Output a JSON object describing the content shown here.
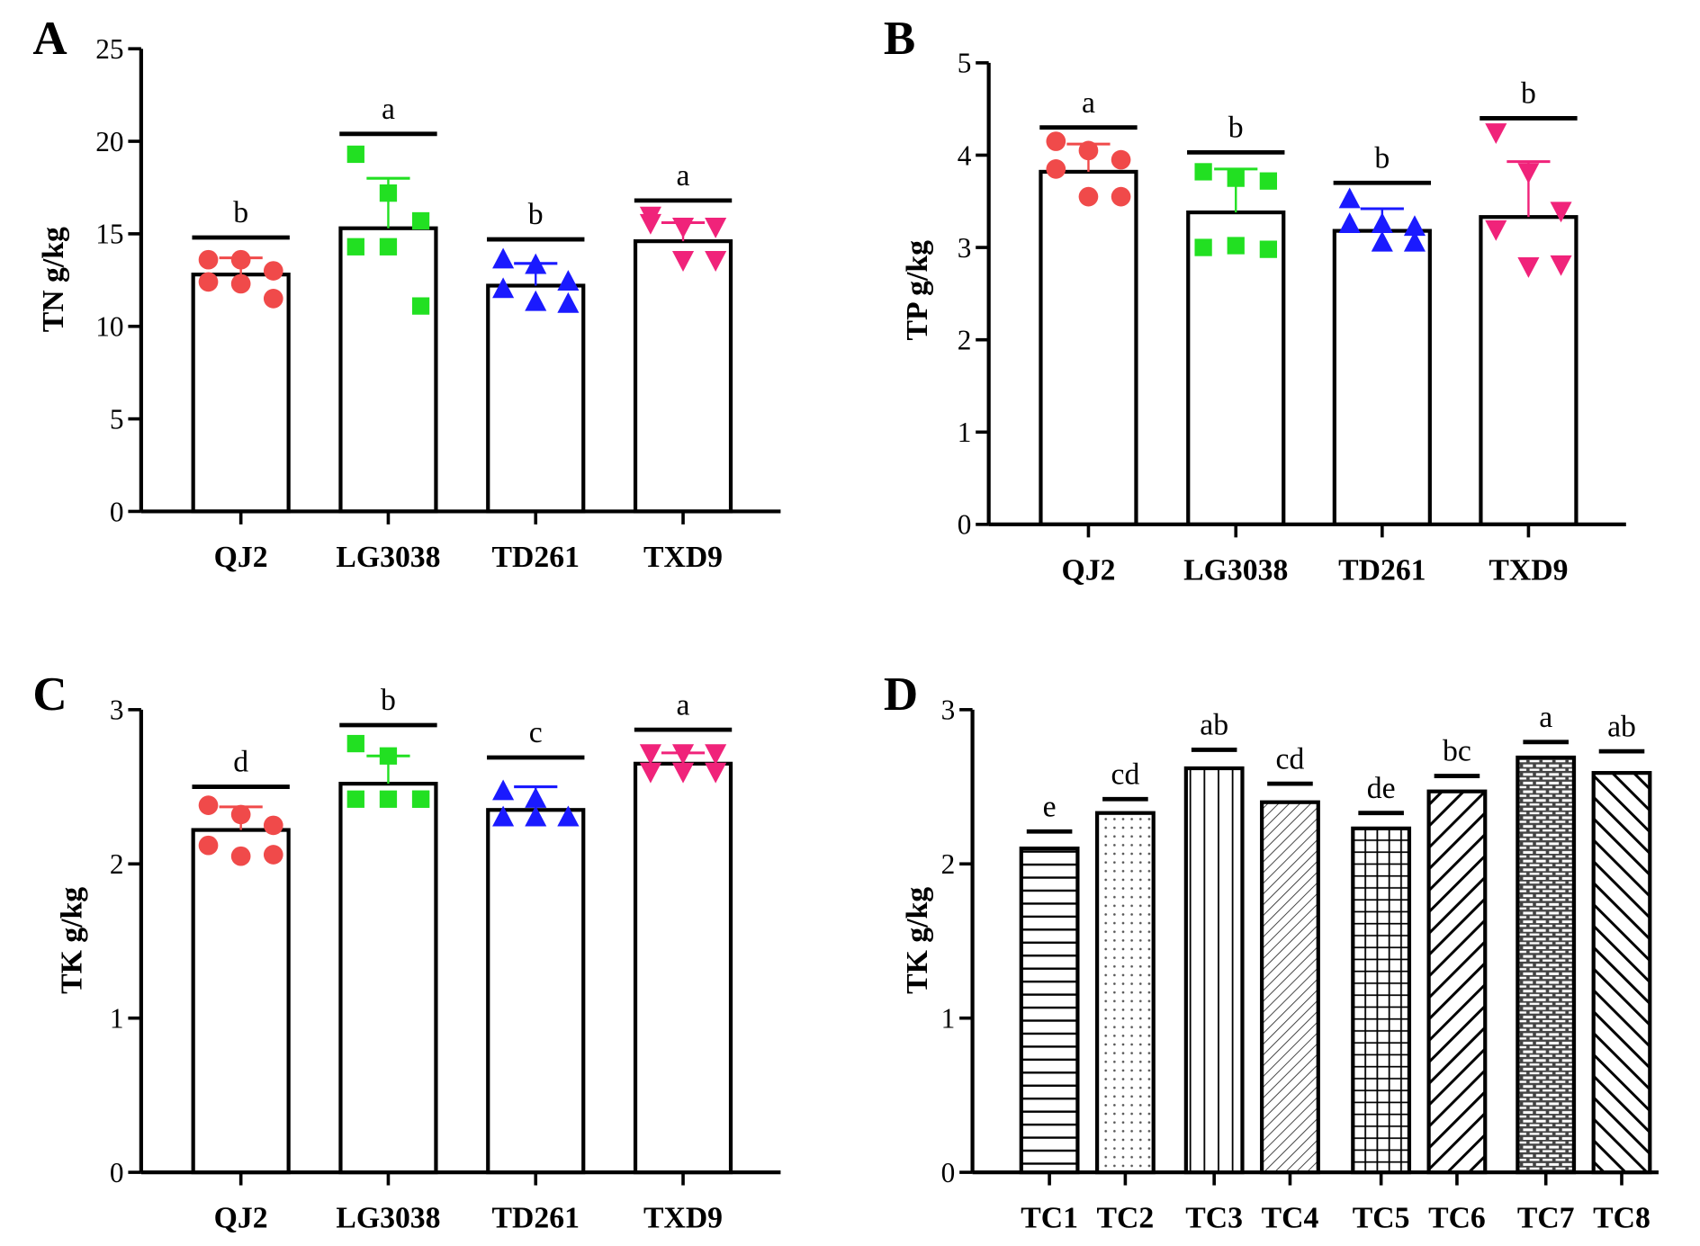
{
  "chart_data": [
    {
      "panel": "A",
      "type": "bar",
      "ylabel": "TN g/kg",
      "ylim": [
        0,
        25
      ],
      "yticks": [
        0,
        5,
        10,
        15,
        20,
        25
      ],
      "categories": [
        "QJ2",
        "LG3038",
        "TD261",
        "TXD9"
      ],
      "values": [
        12.8,
        15.3,
        12.2,
        14.6
      ],
      "sd_upper": [
        13.7,
        18.0,
        13.4,
        15.6
      ],
      "points": [
        [
          13.6,
          13.6,
          13.0,
          12.4,
          12.3,
          11.5
        ],
        [
          19.3,
          17.2,
          15.7,
          14.3,
          14.3,
          11.1
        ],
        [
          13.6,
          13.3,
          12.4,
          12.0,
          11.3,
          11.2
        ],
        [
          16.0,
          15.4,
          15.4,
          15.6,
          13.6,
          13.6
        ]
      ],
      "letters": [
        "b",
        "a",
        "b",
        "a"
      ],
      "letter_line": [
        14.8,
        20.4,
        14.7,
        16.8
      ]
    },
    {
      "panel": "B",
      "type": "bar",
      "ylabel": "TP g/kg",
      "ylim": [
        0,
        5
      ],
      "yticks": [
        0,
        1,
        2,
        3,
        4,
        5
      ],
      "categories": [
        "QJ2",
        "LG3038",
        "TD261",
        "TXD9"
      ],
      "values": [
        3.82,
        3.38,
        3.18,
        3.33
      ],
      "sd_upper": [
        4.12,
        3.85,
        3.42,
        3.93
      ],
      "points": [
        [
          4.15,
          4.05,
          3.95,
          3.85,
          3.55,
          3.55
        ],
        [
          3.82,
          3.75,
          3.72,
          3.0,
          3.02,
          2.98
        ],
        [
          3.52,
          3.25,
          3.22,
          3.25,
          3.05,
          3.05
        ],
        [
          4.25,
          3.82,
          3.4,
          3.2,
          2.8,
          2.82
        ]
      ],
      "letters": [
        "a",
        "b",
        "b",
        "b"
      ],
      "letter_line": [
        4.3,
        4.03,
        3.7,
        4.4
      ]
    },
    {
      "panel": "C",
      "type": "bar",
      "ylabel": "TK g/kg",
      "ylim": [
        0,
        3
      ],
      "yticks": [
        0,
        1,
        2,
        3
      ],
      "categories": [
        "QJ2",
        "LG3038",
        "TD261",
        "TXD9"
      ],
      "values": [
        2.22,
        2.52,
        2.35,
        2.65
      ],
      "sd_upper": [
        2.37,
        2.7,
        2.5,
        2.72
      ],
      "points": [
        [
          2.38,
          2.32,
          2.25,
          2.12,
          2.05,
          2.06
        ],
        [
          2.78,
          2.7,
          2.42,
          2.42,
          2.42,
          2.42
        ],
        [
          2.47,
          2.42,
          2.3,
          2.3,
          2.3,
          2.3
        ],
        [
          2.72,
          2.72,
          2.72,
          2.6,
          2.6,
          2.6
        ]
      ],
      "letters": [
        "d",
        "b",
        "c",
        "a"
      ],
      "letter_line": [
        2.5,
        2.9,
        2.69,
        2.87
      ]
    },
    {
      "panel": "D",
      "type": "bar",
      "ylabel": "TK g/kg",
      "ylim": [
        0,
        3
      ],
      "yticks": [
        0,
        1,
        2,
        3
      ],
      "categories": [
        "TC1",
        "TC2",
        "TC3",
        "TC4",
        "TC5",
        "TC6",
        "TC7",
        "TC8"
      ],
      "values": [
        2.1,
        2.33,
        2.62,
        2.4,
        2.23,
        2.47,
        2.69,
        2.59
      ],
      "letters": [
        "e",
        "cd",
        "ab",
        "cd",
        "de",
        "bc",
        "a",
        "ab"
      ],
      "letter_line": [
        2.21,
        2.42,
        2.74,
        2.52,
        2.33,
        2.57,
        2.79,
        2.73
      ]
    }
  ],
  "colors": {
    "QJ2": "#f04a4a",
    "LG3038": "#22e022",
    "TD261": "#1a1aff",
    "TXD9": "#f0237a",
    "axis": "#000000"
  },
  "markers": {
    "QJ2": "circle",
    "LG3038": "square",
    "TD261": "triangle-up",
    "TXD9": "triangle-down"
  }
}
